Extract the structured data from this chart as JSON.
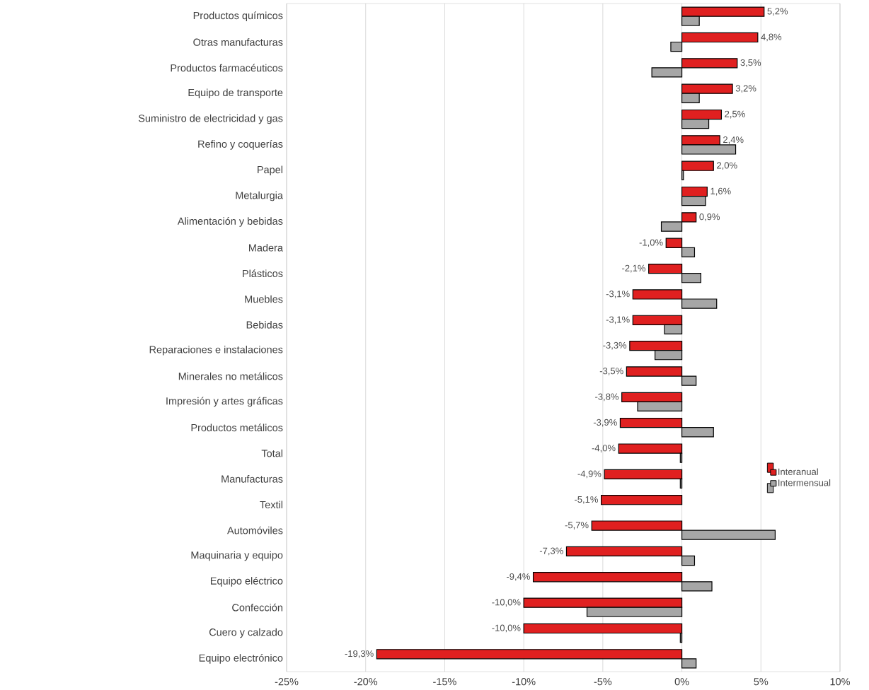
{
  "chart_data": {
    "type": "bar",
    "orientation": "horizontal",
    "categories": [
      "Productos químicos",
      "Otras manufacturas",
      "Productos farmacéuticos",
      "Equipo de transporte",
      "Suministro de electricidad y gas",
      "Refino y coquerías",
      "Papel",
      "Metalurgia",
      "Alimentación y bebidas",
      "Madera",
      "Plásticos",
      "Muebles",
      "Bebidas",
      "Reparaciones e instalaciones",
      "Minerales no metálicos",
      "Impresión y artes gráficas",
      "Productos metálicos",
      "Total",
      "Manufacturas",
      "Textil",
      "Automóviles",
      "Maquinaria y equipo",
      "Equipo eléctrico",
      "Confección",
      "Cuero y calzado",
      "Equipo electrónico"
    ],
    "series": [
      {
        "name": "Interanual",
        "color": "#e02020",
        "values": [
          5.2,
          4.8,
          3.5,
          3.2,
          2.5,
          2.4,
          2.0,
          1.6,
          0.9,
          -1.0,
          -2.1,
          -3.1,
          -3.1,
          -3.3,
          -3.5,
          -3.8,
          -3.9,
          -4.0,
          -4.9,
          -5.1,
          -5.7,
          -7.3,
          -9.4,
          -10.0,
          -10.0,
          -19.3
        ],
        "value_labels": [
          "5,2%",
          "4,8%",
          "3,5%",
          "3,2%",
          "2,5%",
          "2,4%",
          "2,0%",
          "1,6%",
          "0,9%",
          "-1,0%",
          "-2,1%",
          "-3,1%",
          "-3,1%",
          "-3,3%",
          "-3,5%",
          "-3,8%",
          "-3,9%",
          "-4,0%",
          "-4,9%",
          "-5,1%",
          "-5,7%",
          "-7,3%",
          "-9,4%",
          "-10,0%",
          "-10,0%",
          "-19,3%"
        ]
      },
      {
        "name": "Intermensual",
        "color": "#a6a6a6",
        "values": [
          1.1,
          -0.7,
          -1.9,
          1.1,
          1.7,
          3.4,
          0.1,
          1.5,
          -1.3,
          0.8,
          1.2,
          2.2,
          -1.1,
          -1.7,
          0.9,
          -2.8,
          2.0,
          -0.1,
          -0.1,
          null,
          5.9,
          0.8,
          1.9,
          -6.0,
          -0.1,
          0.9
        ]
      }
    ],
    "xlim": [
      -25,
      10
    ],
    "xticks": [
      {
        "value": -25,
        "label": "-25%"
      },
      {
        "value": -20,
        "label": "-20%"
      },
      {
        "value": -15,
        "label": "-15%"
      },
      {
        "value": -10,
        "label": "-10%"
      },
      {
        "value": -5,
        "label": "-5%"
      },
      {
        "value": 0,
        "label": "0%"
      },
      {
        "value": 5,
        "label": "5%"
      },
      {
        "value": 10,
        "label": "10%"
      }
    ],
    "grid": "x",
    "legend": "right"
  }
}
